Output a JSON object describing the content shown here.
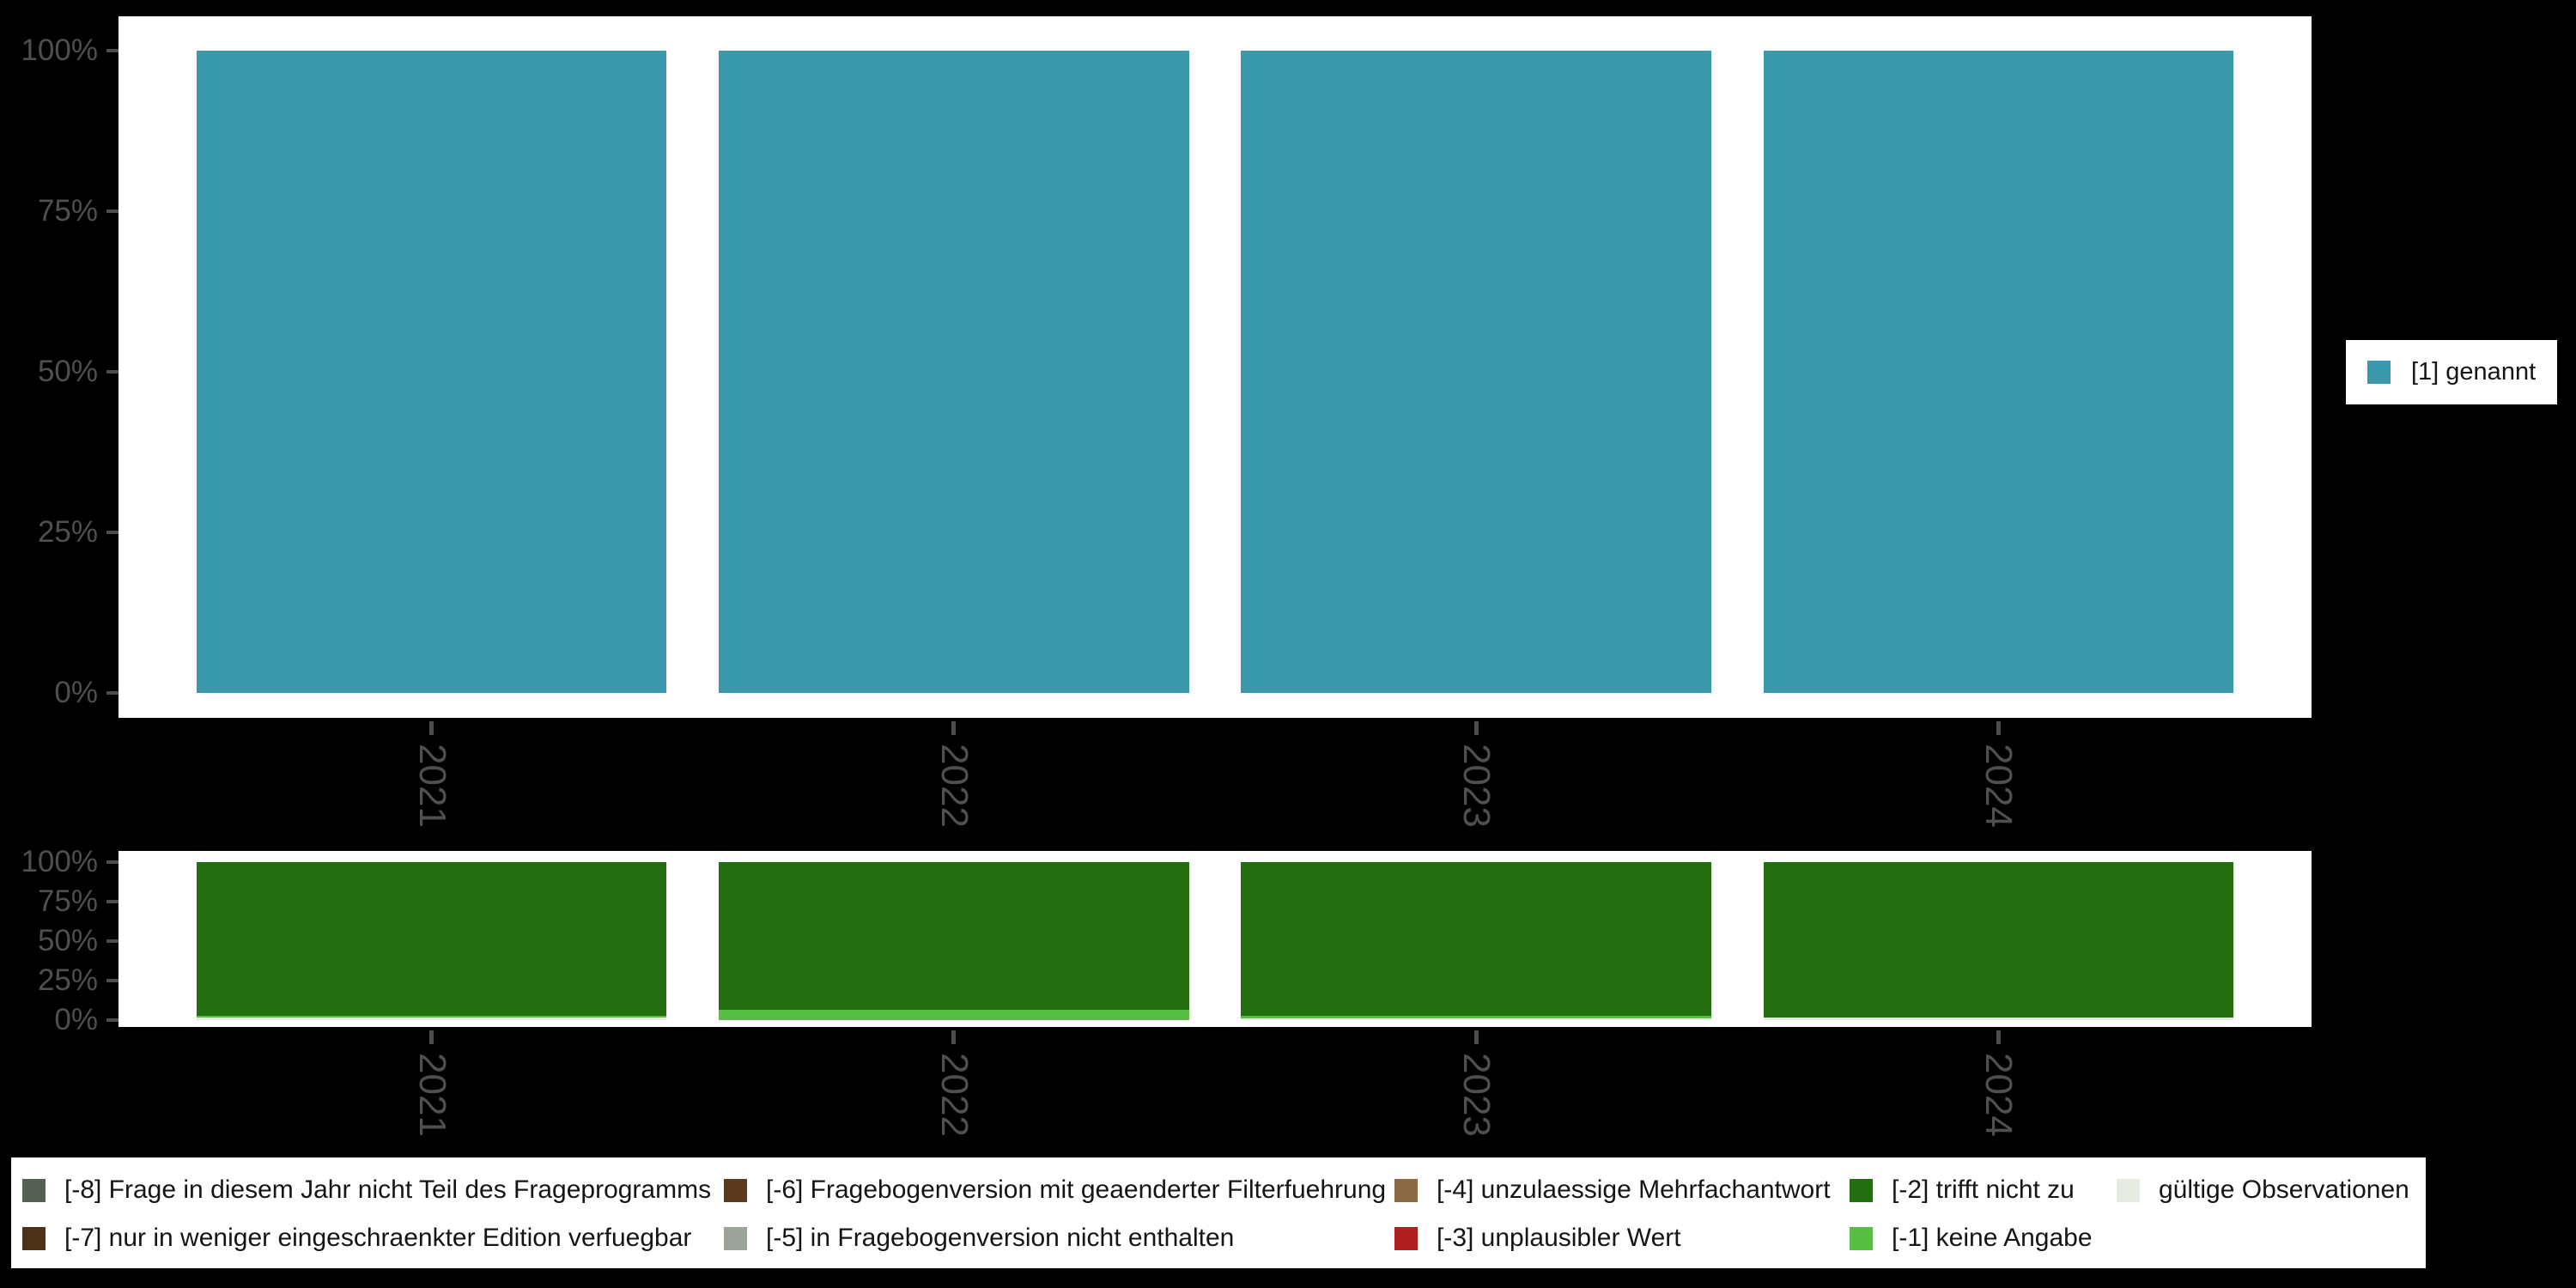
{
  "style": {
    "page_background": "#000000",
    "panel_background": "#ffffff",
    "axis_text_color": "#4f4f4f",
    "tick_color": "#4d4d4d",
    "legend_background": "#ffffff",
    "legend_text_color": "#151515"
  },
  "chart_data": [
    {
      "id": "top",
      "type": "bar",
      "stacked": true,
      "title": "",
      "xlabel": "",
      "ylabel": "",
      "categories": [
        "2021",
        "2022",
        "2023",
        "2024"
      ],
      "series": [
        {
          "name": "[1] genannt",
          "color": "#3B99AE",
          "values": [
            100,
            100,
            100,
            100
          ]
        }
      ],
      "ylim": [
        0,
        100
      ],
      "y_ticks": [
        {
          "label": "0%",
          "value": 0
        },
        {
          "label": "25%",
          "value": 25
        },
        {
          "label": "50%",
          "value": 50
        },
        {
          "label": "75%",
          "value": 75
        },
        {
          "label": "100%",
          "value": 100
        }
      ],
      "grid": false,
      "legend_position": "right"
    },
    {
      "id": "bottom",
      "type": "bar",
      "stacked": true,
      "title": "",
      "xlabel": "",
      "ylabel": "",
      "categories": [
        "2021",
        "2022",
        "2023",
        "2024"
      ],
      "series": [
        {
          "name": "gültige Observationen",
          "color": "#E7ECE3",
          "values": [
            1.6,
            0,
            1.1,
            1.4
          ]
        },
        {
          "name": "[-1] keine Angabe",
          "color": "#58BD43",
          "values": [
            1.1,
            6.5,
            1.6,
            0
          ]
        },
        {
          "name": "[-2] trifft nicht zu",
          "color": "#226E10",
          "values": [
            97.3,
            93.5,
            97.3,
            98.6
          ]
        }
      ],
      "ylim": [
        0,
        100
      ],
      "y_ticks": [
        {
          "label": "0%",
          "value": 0
        },
        {
          "label": "25%",
          "value": 25
        },
        {
          "label": "50%",
          "value": 50
        },
        {
          "label": "75%",
          "value": 75
        },
        {
          "label": "100%",
          "value": 100
        }
      ],
      "grid": false,
      "legend_position": "bottom"
    }
  ],
  "legend_right": {
    "items": [
      {
        "label": "[1] genannt",
        "color": "#3B99AE"
      }
    ]
  },
  "legend_bottom": {
    "columns": [
      [
        {
          "label": "[-8] Frage in diesem Jahr nicht Teil des Frageprogramms",
          "color": "#565F56"
        },
        {
          "label": "[-7] nur in weniger eingeschraenkter Edition verfuegbar",
          "color": "#4A3118"
        }
      ],
      [
        {
          "label": "[-6] Fragebogenversion mit geaenderter Filterfuehrung",
          "color": "#5C3A1D"
        },
        {
          "label": "[-5] in Fragebogenversion nicht enthalten",
          "color": "#9CA49A"
        }
      ],
      [
        {
          "label": "[-4] unzulaessige Mehrfachantwort",
          "color": "#8C6A45"
        },
        {
          "label": "[-3] unplausibler Wert",
          "color": "#B01F1F"
        }
      ],
      [
        {
          "label": "[-2] trifft nicht zu",
          "color": "#226E10"
        },
        {
          "label": "[-1] keine Angabe",
          "color": "#58BD43"
        }
      ],
      [
        {
          "label": "gültige Observationen",
          "color": "#E7ECE3"
        }
      ]
    ]
  }
}
